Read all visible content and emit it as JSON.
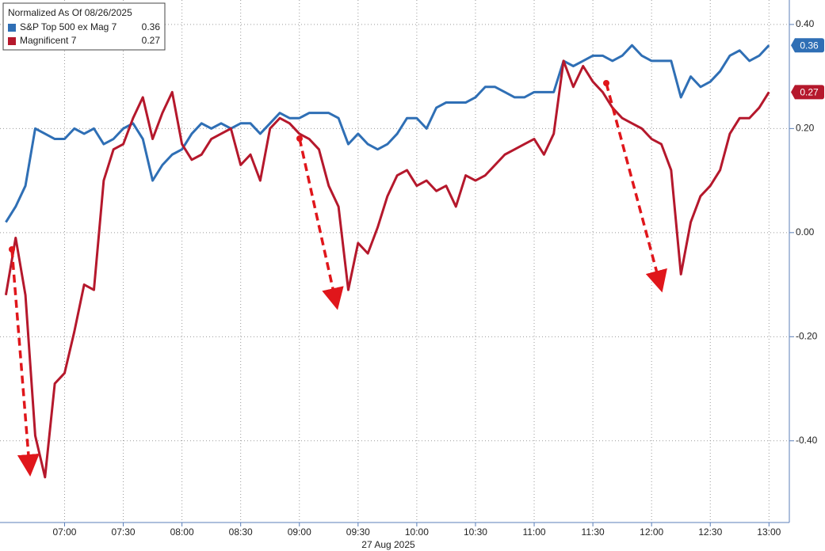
{
  "chart_data": {
    "type": "line",
    "legend_title": "Normalized As Of 08/26/2025",
    "xlabel": "27 Aug 2025",
    "x": [
      390,
      395,
      400,
      405,
      410,
      415,
      420,
      425,
      430,
      435,
      440,
      445,
      450,
      455,
      460,
      465,
      470,
      475,
      480,
      485,
      490,
      495,
      500,
      505,
      510,
      515,
      520,
      525,
      530,
      535,
      540,
      545,
      550,
      555,
      560,
      565,
      570,
      575,
      580,
      585,
      590,
      595,
      600,
      605,
      610,
      615,
      620,
      625,
      630,
      635,
      640,
      645,
      650,
      655,
      660,
      665,
      670,
      675,
      680,
      685,
      690,
      695,
      700,
      705,
      710,
      715,
      720,
      725,
      730,
      735,
      740,
      745,
      750,
      755,
      760,
      765,
      770,
      775,
      780
    ],
    "series": [
      {
        "name": "S&P Top 500 ex Mag 7",
        "color": "#2f6fb5",
        "last_label": "0.36",
        "values": [
          0.02,
          0.05,
          0.09,
          0.2,
          0.19,
          0.18,
          0.18,
          0.2,
          0.19,
          0.2,
          0.17,
          0.18,
          0.2,
          0.21,
          0.18,
          0.1,
          0.13,
          0.15,
          0.16,
          0.19,
          0.21,
          0.2,
          0.21,
          0.2,
          0.21,
          0.21,
          0.19,
          0.21,
          0.23,
          0.22,
          0.22,
          0.23,
          0.23,
          0.23,
          0.22,
          0.17,
          0.19,
          0.17,
          0.16,
          0.17,
          0.19,
          0.22,
          0.22,
          0.2,
          0.24,
          0.25,
          0.25,
          0.25,
          0.26,
          0.28,
          0.28,
          0.27,
          0.26,
          0.26,
          0.27,
          0.27,
          0.27,
          0.33,
          0.32,
          0.33,
          0.34,
          0.34,
          0.33,
          0.34,
          0.36,
          0.34,
          0.33,
          0.33,
          0.33,
          0.26,
          0.3,
          0.28,
          0.29,
          0.31,
          0.34,
          0.35,
          0.33,
          0.34,
          0.36
        ]
      },
      {
        "name": "Magnificent 7",
        "color": "#b5182c",
        "last_label": "0.27",
        "values": [
          -0.12,
          -0.01,
          -0.12,
          -0.39,
          -0.47,
          -0.29,
          -0.27,
          -0.19,
          -0.1,
          -0.11,
          0.1,
          0.16,
          0.17,
          0.22,
          0.26,
          0.18,
          0.23,
          0.27,
          0.17,
          0.14,
          0.15,
          0.18,
          0.19,
          0.2,
          0.13,
          0.15,
          0.1,
          0.2,
          0.22,
          0.21,
          0.19,
          0.18,
          0.16,
          0.09,
          0.05,
          -0.11,
          -0.02,
          -0.04,
          0.01,
          0.07,
          0.11,
          0.12,
          0.09,
          0.1,
          0.08,
          0.09,
          0.05,
          0.11,
          0.1,
          0.11,
          0.13,
          0.15,
          0.16,
          0.17,
          0.18,
          0.15,
          0.19,
          0.33,
          0.28,
          0.32,
          0.29,
          0.27,
          0.24,
          0.22,
          0.21,
          0.2,
          0.18,
          0.17,
          0.12,
          -0.08,
          0.02,
          0.07,
          0.09,
          0.12,
          0.19,
          0.22,
          0.22,
          0.24,
          0.27
        ]
      }
    ],
    "xlim": [
      387,
      790
    ],
    "xticks": [
      {
        "value": 420,
        "label": "07:00"
      },
      {
        "value": 450,
        "label": "07:30"
      },
      {
        "value": 480,
        "label": "08:00"
      },
      {
        "value": 510,
        "label": "08:30"
      },
      {
        "value": 540,
        "label": "09:00"
      },
      {
        "value": 570,
        "label": "09:30"
      },
      {
        "value": 600,
        "label": "10:00"
      },
      {
        "value": 630,
        "label": "10:30"
      },
      {
        "value": 660,
        "label": "11:00"
      },
      {
        "value": 690,
        "label": "11:30"
      },
      {
        "value": 720,
        "label": "12:00"
      },
      {
        "value": 750,
        "label": "12:30"
      },
      {
        "value": 780,
        "label": "13:00"
      }
    ],
    "ylim": [
      -0.557,
      0.447
    ],
    "yticks": [
      {
        "value": 0.4,
        "label": "0.40"
      },
      {
        "value": 0.2,
        "label": "0.20"
      },
      {
        "value": 0,
        "label": "0.00"
      },
      {
        "value": -0.2,
        "label": "-0.20"
      },
      {
        "value": -0.4,
        "label": "-0.40"
      }
    ],
    "grid": true
  }
}
